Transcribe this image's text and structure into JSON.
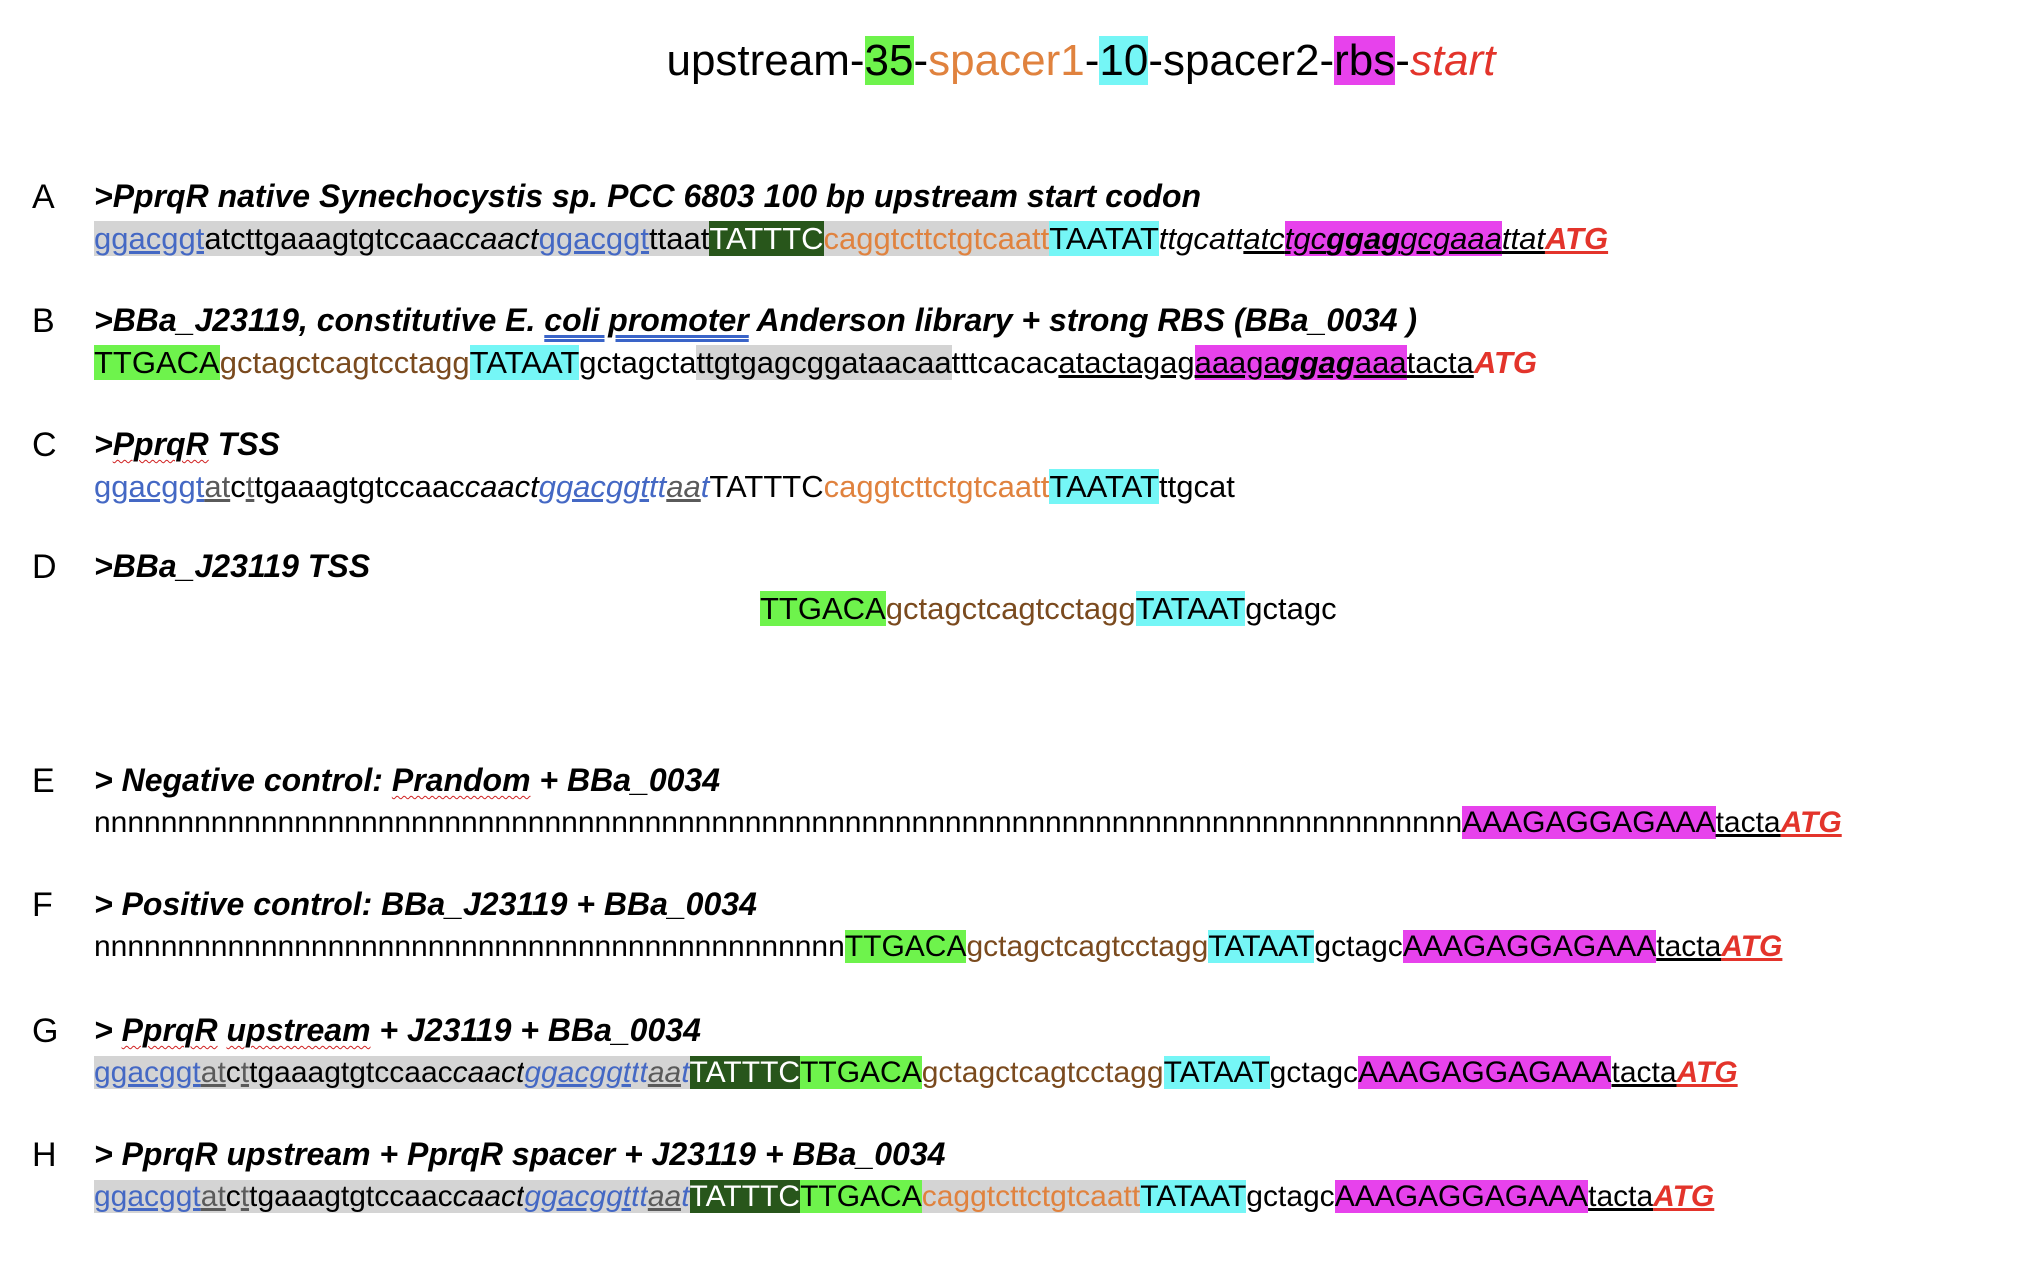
{
  "legend": {
    "upstream": "upstream-",
    "m35": "35",
    "d1": "-",
    "spacer1": "spacer1",
    "d2": "-",
    "m10": "10",
    "spacer2": "-spacer2-",
    "rbs": "rbs",
    "d3": "-",
    "start": "start"
  },
  "colors": {
    "minus35": "#6ef34c",
    "minus10": "#75f6f6",
    "rbs": "#e742ec",
    "upstream_element": "#28561b",
    "spacer1": "#e0823e",
    "start": "#e3342b",
    "repeat": "#4468c4"
  },
  "entries": {
    "A": {
      "letter": "A",
      "header": ">PprqR native Synechocystis sp. PCC 6803 100 bp upstream start codon",
      "s": [
        "ggacggt",
        "atcttgaaagtgtccaac",
        "caact",
        "ggacggt",
        "ttaat",
        "TATTTC",
        "caggtcttctgtcaatt",
        "TAATAT",
        "ttgcatt",
        "atc",
        "tgc",
        "ggag",
        "gcgaaa",
        "ttat",
        "ATG"
      ]
    },
    "B": {
      "letter": "B",
      "header_pre": ">BBa_J23119, constitutive E. ",
      "header_link": "coli  promoter",
      "header_post": " Anderson library + strong RBS (BBa_0034 )",
      "s": [
        "TTGACA",
        "gctagctcagtcctagg",
        "TATAAT",
        "gctagcta",
        "ttgtgagcggataacaa",
        "tttcacac",
        "atactagag",
        "aaaga",
        "ggag",
        "aaa",
        "tacta",
        "ATG"
      ]
    },
    "C": {
      "letter": "C",
      "header_pre": ">",
      "header_wavy": "PprqR",
      "header_post": " TSS",
      "s": [
        "ggacggt",
        "at",
        "c",
        "t",
        "t",
        "gaaagtgtccaac",
        "caact",
        "ggacggt",
        "t",
        "t",
        "aa",
        "t",
        "TATTTC",
        "caggtcttctgtcaatt",
        "TAATAT",
        "ttgcat"
      ]
    },
    "D": {
      "letter": "D",
      "header": ">BBa_J23119 TSS",
      "s": [
        "TTGACA",
        "gctagctcagtcctagg",
        "TATAAT",
        "gctagc"
      ]
    },
    "E": {
      "letter": "E",
      "header_pre": "> Negative control: ",
      "header_wavy": "Prandom",
      "header_post": " + BBa_0034",
      "s": [
        "nnnnnnnnnnnnnnnnnnnnnnnnnnnnnnnnnnnnnnnnnnnnnnnnnnnnnnnnnnnnnnnnnnnnnnnnnnnnnnnnnn",
        "AAAGAGGAGAAA",
        "tacta",
        "ATG"
      ]
    },
    "F": {
      "letter": "F",
      "header": "> Positive control: BBa_J23119 + BBa_0034",
      "s": [
        "nnnnnnnnnnnnnnnnnnnnnnnnnnnnnnnnnnnnnnnnnnnnn",
        "TTGACA",
        "gctagctcagtcctagg",
        "TATAAT",
        "gctagc",
        "AAAGAGGAGAAA",
        "tacta",
        "ATG"
      ]
    },
    "G": {
      "letter": "G",
      "header_pre": "> ",
      "header_wavy": "PprqR",
      "header_mid": " ",
      "header_wavy2": "upstream",
      "header_post": " + J23119 + BBa_0034",
      "s": [
        "ggacggt",
        "at",
        "c",
        "t",
        "t",
        "gaaagtgtccaac",
        "caact",
        "ggacggt",
        "t",
        "t",
        "aa",
        "t",
        "TATTTC",
        "TTGACA",
        "gctagctcagtcctagg",
        "TATAAT",
        "gctagc",
        "AAAGAGGAGAAA",
        "tacta",
        "ATG"
      ]
    },
    "H": {
      "letter": "H",
      "header": "> PprqR upstream + PprqR spacer + J23119 + BBa_0034",
      "s": [
        "ggacggt",
        "at",
        "c",
        "t",
        "t",
        "gaaagtgtccaac",
        "caact",
        "ggacggt",
        "t",
        "t",
        "aa",
        "t",
        "TATTTC",
        "TTGACA",
        "caggtcttctgtcaatt",
        "TATAAT",
        "gctagc",
        "AAAGAGGAGAAA",
        "tacta",
        "ATG"
      ]
    }
  }
}
